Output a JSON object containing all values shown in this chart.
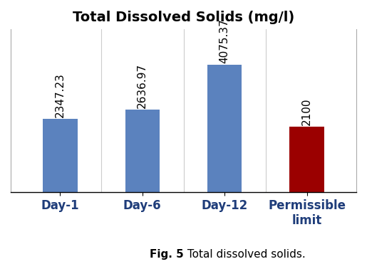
{
  "title": "Total Dissolved Solids (mg/l)",
  "categories": [
    "Day-1",
    "Day-6",
    "Day-12",
    "Permissible\nlimit"
  ],
  "values": [
    2347.23,
    2636.97,
    4075.37,
    2100
  ],
  "bar_colors": [
    "#5B82BE",
    "#5B82BE",
    "#5B82BE",
    "#9B0000"
  ],
  "value_labels": [
    "2347.23",
    "2636.97",
    "4075.37",
    "2100"
  ],
  "ylim": [
    0,
    5200
  ],
  "figsize": [
    5.15,
    3.71
  ],
  "dpi": 100,
  "caption_bold": "Fig. 5",
  "caption_normal": " Total dissolved solids.",
  "title_fontsize": 14,
  "tick_fontsize": 12,
  "value_label_fontsize": 11,
  "caption_fontsize": 11,
  "bar_width": 0.42
}
